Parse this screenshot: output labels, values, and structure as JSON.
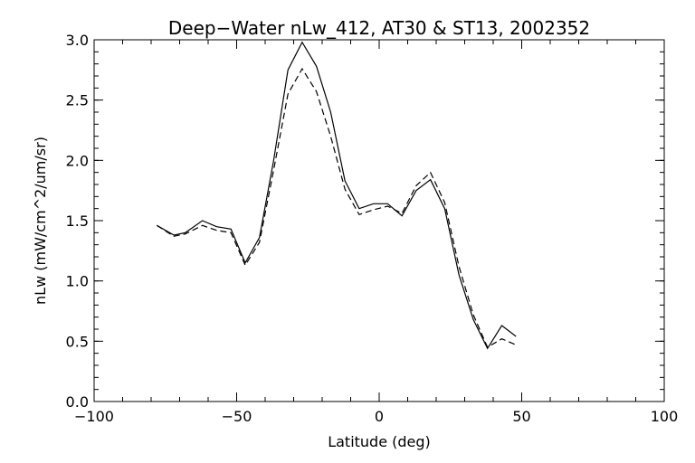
{
  "chart_data": {
    "type": "line",
    "title": "Deep−Water nLw_412, AT30 & ST13, 2002352",
    "xlabel": "Latitude (deg)",
    "ylabel": "nLw (mW/cm^2/um/sr)",
    "xlim": [
      -100,
      100
    ],
    "ylim": [
      0.0,
      3.0
    ],
    "x_ticks": [
      -100,
      -50,
      0,
      50,
      100
    ],
    "x_tick_labels": [
      "−100",
      "−50",
      "0",
      "50",
      "100"
    ],
    "y_ticks": [
      0.0,
      0.5,
      1.0,
      1.5,
      2.0,
      2.5,
      3.0
    ],
    "y_tick_labels": [
      "0.0",
      "0.5",
      "1.0",
      "1.5",
      "2.0",
      "2.5",
      "3.0"
    ],
    "grid": false,
    "series": [
      {
        "style": "solid",
        "x": [
          -78,
          -72,
          -68,
          -62,
          -57,
          -52,
          -47,
          -42,
          -37,
          -32,
          -27,
          -22,
          -17,
          -12,
          -7,
          -2,
          3,
          8,
          13,
          18,
          23,
          28,
          33,
          38,
          43,
          48
        ],
        "y": [
          1.46,
          1.38,
          1.4,
          1.5,
          1.45,
          1.43,
          1.15,
          1.36,
          2.0,
          2.75,
          2.98,
          2.78,
          2.4,
          1.83,
          1.6,
          1.64,
          1.64,
          1.54,
          1.75,
          1.84,
          1.6,
          1.05,
          0.68,
          0.44,
          0.63,
          0.54
        ]
      },
      {
        "style": "dashed",
        "x": [
          -78,
          -72,
          -68,
          -62,
          -57,
          -52,
          -47,
          -42,
          -37,
          -32,
          -27,
          -22,
          -17,
          -12,
          -7,
          -2,
          3,
          8,
          13,
          18,
          23,
          28,
          33,
          38,
          43,
          48
        ],
        "y": [
          1.46,
          1.37,
          1.39,
          1.46,
          1.42,
          1.4,
          1.13,
          1.32,
          1.92,
          2.55,
          2.76,
          2.57,
          2.2,
          1.76,
          1.55,
          1.59,
          1.62,
          1.56,
          1.79,
          1.9,
          1.65,
          1.12,
          0.72,
          0.45,
          0.52,
          0.47
        ]
      }
    ]
  }
}
